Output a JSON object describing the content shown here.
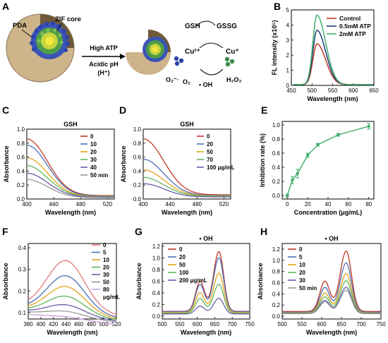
{
  "panelA": {
    "letter": "A",
    "labels": {
      "pda": "PDA",
      "zif": "ZIF core",
      "high_atp": "High ATP",
      "acidic": "Acidic pH",
      "hplus": "(H⁺)",
      "gsh": "GSH",
      "gssg": "GSSG",
      "cu2": "Cu²⁺",
      "cu1": "Cu⁺",
      "o2rad": "O₂⁻·",
      "o2": "O₂",
      "oh": "• OH",
      "h2o2": "H₂O₂"
    }
  },
  "chart_data": [
    {
      "id": "B",
      "letter": "B",
      "type": "line",
      "title": "",
      "xlabel": "Wavelength (nm)",
      "ylabel": "FL intensity (x10⁵)",
      "xlim": [
        450,
        650
      ],
      "xticks": [
        450,
        500,
        550,
        600,
        650
      ],
      "ylim": [
        0,
        5
      ],
      "yticks": [
        0,
        1,
        2,
        3,
        4,
        5
      ],
      "legend_position": "top-right",
      "series": [
        {
          "name": "Control",
          "color": "#c0392b",
          "peak_x": 512,
          "peak_y": 2.75,
          "base": 0.05
        },
        {
          "name": "0.5mM ATP",
          "color": "#1f3b73",
          "peak_x": 512,
          "peak_y": 3.65,
          "base": 0.05
        },
        {
          "name": "2mM ATP",
          "color": "#3fae6a",
          "peak_x": 512,
          "peak_y": 4.65,
          "base": 0.05
        }
      ]
    },
    {
      "id": "C",
      "letter": "C",
      "type": "line",
      "title": "GSH",
      "xlabel": "Wavelength (nm)",
      "ylabel": "Absorbance",
      "xlim": [
        400,
        530
      ],
      "xticks": [
        400,
        440,
        480,
        520
      ],
      "ylim": [
        0,
        1.0
      ],
      "yticks": [
        0.0,
        0.2,
        0.4,
        0.6,
        0.8,
        1.0
      ],
      "legend_position": "top-right",
      "series": [
        {
          "name": "0",
          "color": "#c0392b",
          "start": 0.86,
          "end": 0.05
        },
        {
          "name": "10",
          "color": "#4a6fb5",
          "start": 0.77,
          "end": 0.045
        },
        {
          "name": "20",
          "color": "#e3a21a",
          "start": 0.59,
          "end": 0.04
        },
        {
          "name": "30",
          "color": "#5fb85f",
          "start": 0.48,
          "end": 0.035
        },
        {
          "name": "40",
          "color": "#6c5aa8",
          "start": 0.37,
          "end": 0.03
        },
        {
          "name": "50 min",
          "color": "#999999",
          "start": 0.28,
          "end": 0.02
        }
      ]
    },
    {
      "id": "D",
      "letter": "D",
      "type": "line",
      "title": "GSH",
      "xlabel": "Wavelength (nm)",
      "ylabel": "Absorbance",
      "xlim": [
        400,
        530
      ],
      "xticks": [
        400,
        440,
        480,
        520
      ],
      "ylim": [
        0,
        1.0
      ],
      "yticks": [
        0.0,
        0.2,
        0.4,
        0.6,
        0.8,
        1.0
      ],
      "legend_position": "top-right",
      "series": [
        {
          "name": "0",
          "color": "#c0392b",
          "start": 0.86,
          "end": 0.06
        },
        {
          "name": "20",
          "color": "#4a6fb5",
          "start": 0.57,
          "end": 0.05
        },
        {
          "name": "50",
          "color": "#e3a21a",
          "start": 0.42,
          "end": 0.045
        },
        {
          "name": "70",
          "color": "#5fb85f",
          "start": 0.31,
          "end": 0.04
        },
        {
          "name": "100 μg/mL",
          "color": "#6c5aa8",
          "start": 0.22,
          "end": 0.03
        }
      ]
    },
    {
      "id": "E",
      "letter": "E",
      "type": "scatter",
      "title": "",
      "xlabel": "Concentration (μg/mL)",
      "ylabel": "Inhibition rate (%)",
      "xlim": [
        -5,
        85
      ],
      "xticks": [
        0,
        20,
        40,
        60,
        80
      ],
      "ylim": [
        -0.05,
        1.05
      ],
      "yticks": [
        0.0,
        0.2,
        0.4,
        0.6,
        0.8,
        1.0
      ],
      "color": "#3fae6a",
      "points": [
        {
          "x": 0,
          "y": 0.0,
          "err": 0.02
        },
        {
          "x": 5,
          "y": 0.22,
          "err": 0.05
        },
        {
          "x": 10,
          "y": 0.31,
          "err": 0.06
        },
        {
          "x": 20,
          "y": 0.57,
          "err": 0.03
        },
        {
          "x": 30,
          "y": 0.72,
          "err": 0.02
        },
        {
          "x": 50,
          "y": 0.86,
          "err": 0.02
        },
        {
          "x": 80,
          "y": 0.98,
          "err": 0.04
        }
      ]
    },
    {
      "id": "F",
      "letter": "F",
      "type": "line",
      "title": "",
      "xlabel": "Wavelength (nm)",
      "ylabel": "Absorbance",
      "xlim": [
        380,
        520
      ],
      "xticks": [
        380,
        400,
        420,
        440,
        460,
        480,
        500,
        520
      ],
      "ylim": [
        0.07,
        0.42
      ],
      "yticks": [
        0.1,
        0.2,
        0.3,
        0.4
      ],
      "legend_position": "top-right",
      "series": [
        {
          "name": "0",
          "color": "#e07a7a",
          "peak": 0.36,
          "base": 0.13
        },
        {
          "name": "5",
          "color": "#4a6fb5",
          "peak": 0.29,
          "base": 0.12
        },
        {
          "name": "10",
          "color": "#e3a21a",
          "peak": 0.24,
          "base": 0.115
        },
        {
          "name": "20",
          "color": "#5fb85f",
          "peak": 0.195,
          "base": 0.11
        },
        {
          "name": "30",
          "color": "#6c5aa8",
          "peak": 0.155,
          "base": 0.105
        },
        {
          "name": "50",
          "color": "#999999",
          "peak": 0.125,
          "base": 0.1
        },
        {
          "name": "80",
          "color": "#c7a0d8",
          "peak": 0.1,
          "base": 0.09
        }
      ],
      "legend_unit": "μg/mL"
    },
    {
      "id": "G",
      "letter": "G",
      "type": "line",
      "title": "• OH",
      "xlabel": "Wavelength (nm)",
      "ylabel": "Absorbance",
      "xlim": [
        500,
        750
      ],
      "xticks": [
        500,
        550,
        600,
        650,
        700,
        750
      ],
      "ylim": [
        -0.05,
        1.25
      ],
      "yticks": [
        0.0,
        0.2,
        0.4,
        0.6,
        0.8,
        1.0,
        1.2
      ],
      "legend_position": "top-left",
      "series": [
        {
          "name": "0",
          "color": "#c0392b",
          "peak": 1.03
        },
        {
          "name": "20",
          "color": "#4a6fb5",
          "peak": 0.93
        },
        {
          "name": "50",
          "color": "#e3a21a",
          "peak": 0.68
        },
        {
          "name": "100",
          "color": "#5fb85f",
          "peak": 0.5
        },
        {
          "name": "200 μg/mL",
          "color": "#6c5aa8",
          "peak": 0.27
        }
      ]
    },
    {
      "id": "H",
      "letter": "H",
      "type": "line",
      "title": "• OH",
      "xlabel": "Wavelength (nm)",
      "ylabel": "Absorbance",
      "xlim": [
        500,
        750
      ],
      "xticks": [
        500,
        550,
        600,
        650,
        700,
        750
      ],
      "ylim": [
        -0.05,
        1.3
      ],
      "yticks": [
        0.0,
        0.2,
        0.4,
        0.6,
        0.8,
        1.0,
        1.2
      ],
      "legend_position": "top-left",
      "series": [
        {
          "name": "0",
          "color": "#c0392b",
          "peak": 1.08
        },
        {
          "name": "5",
          "color": "#4a6fb5",
          "peak": 0.88
        },
        {
          "name": "10",
          "color": "#e3a21a",
          "peak": 0.7
        },
        {
          "name": "20",
          "color": "#5fb85f",
          "peak": 0.58
        },
        {
          "name": "30",
          "color": "#6c5aa8",
          "peak": 0.47
        },
        {
          "name": "50 min",
          "color": "#999999",
          "peak": 0.42
        }
      ]
    }
  ]
}
